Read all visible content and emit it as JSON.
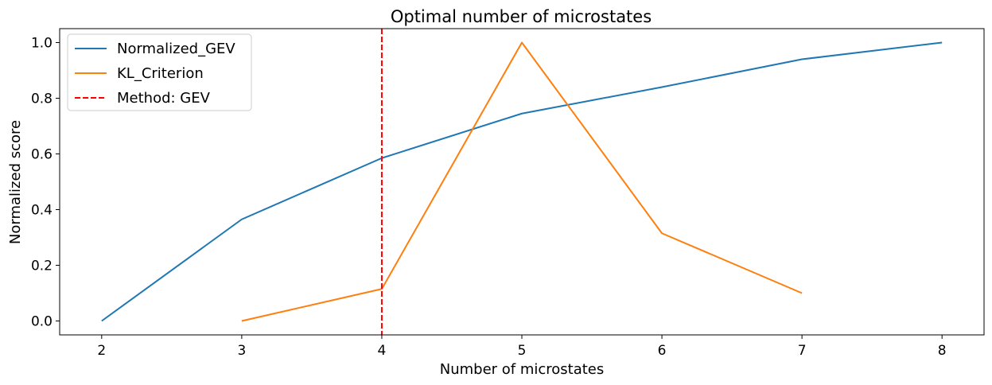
{
  "chart_data": {
    "type": "line",
    "title": "Optimal number of microstates",
    "xlabel": "Number of microstates",
    "ylabel": "Normalized score",
    "xlim": [
      1.7,
      8.3
    ],
    "ylim": [
      -0.05,
      1.05
    ],
    "xticks": [
      2,
      3,
      4,
      5,
      6,
      7,
      8
    ],
    "xtick_labels": [
      "2",
      "3",
      "4",
      "5",
      "6",
      "7",
      "8"
    ],
    "yticks": [
      0.0,
      0.2,
      0.4,
      0.6,
      0.8,
      1.0
    ],
    "ytick_labels": [
      "0.0",
      "0.2",
      "0.4",
      "0.6",
      "0.8",
      "1.0"
    ],
    "grid": false,
    "legend_position": "top-left",
    "series": [
      {
        "name": "Normalized_GEV",
        "color": "#1f77b4",
        "style": "solid",
        "x": [
          2,
          3,
          4,
          5,
          6,
          7,
          8
        ],
        "y": [
          0.0,
          0.365,
          0.585,
          0.745,
          0.84,
          0.94,
          1.0
        ]
      },
      {
        "name": "KL_Criterion",
        "color": "#ff7f0e",
        "style": "solid",
        "x": [
          3,
          4,
          5,
          6,
          7
        ],
        "y": [
          0.0,
          0.115,
          1.0,
          0.315,
          0.1
        ]
      }
    ],
    "vlines": [
      {
        "name": "Method: GEV",
        "x": 4,
        "color": "#ff0000",
        "style": "dashed"
      }
    ]
  }
}
